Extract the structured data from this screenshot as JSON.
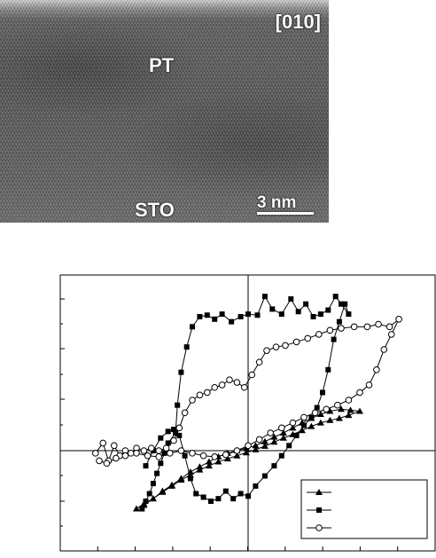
{
  "tem": {
    "zone_axis": "[010]",
    "film_label": "PT",
    "substrate_label": "STO",
    "scale_label": "3 nm"
  },
  "chart_data": {
    "type": "scatter",
    "grid": false,
    "legend_position": "bottom-right",
    "legend_marker_colors": [
      "#000000",
      "#000000",
      "#ffffff"
    ],
    "series": [
      {
        "marker": "triangle",
        "points": [
          [
            -3.0,
            -1.15
          ],
          [
            -2.8,
            -1.05
          ],
          [
            -2.55,
            -0.95
          ],
          [
            -2.3,
            -0.8
          ],
          [
            -2.05,
            -0.68
          ],
          [
            -1.8,
            -0.55
          ],
          [
            -1.55,
            -0.42
          ],
          [
            -1.3,
            -0.32
          ],
          [
            -1.05,
            -0.22
          ],
          [
            -0.8,
            -0.12
          ],
          [
            -0.55,
            -0.05
          ],
          [
            -0.3,
            0.0
          ],
          [
            -0.05,
            0.05
          ],
          [
            0.2,
            0.1
          ],
          [
            0.45,
            0.18
          ],
          [
            0.7,
            0.27
          ],
          [
            0.95,
            0.35
          ],
          [
            1.2,
            0.45
          ],
          [
            1.45,
            0.55
          ],
          [
            1.7,
            0.64
          ],
          [
            1.95,
            0.72
          ],
          [
            2.2,
            0.78
          ],
          [
            2.5,
            0.82
          ],
          [
            2.75,
            0.8
          ],
          [
            3.0,
            0.78
          ],
          [
            2.7,
            0.7
          ],
          [
            2.45,
            0.64
          ],
          [
            2.2,
            0.6
          ],
          [
            1.95,
            0.55
          ],
          [
            1.7,
            0.48
          ],
          [
            1.45,
            0.4
          ],
          [
            1.2,
            0.32
          ],
          [
            0.95,
            0.25
          ],
          [
            0.7,
            0.17
          ],
          [
            0.45,
            0.09
          ],
          [
            0.2,
            0.02
          ],
          [
            -0.05,
            -0.04
          ],
          [
            -0.3,
            -0.1
          ],
          [
            -0.55,
            -0.16
          ],
          [
            -0.8,
            -0.22
          ],
          [
            -1.05,
            -0.3
          ],
          [
            -1.3,
            -0.38
          ],
          [
            -1.55,
            -0.48
          ],
          [
            -1.8,
            -0.58
          ],
          [
            -2.05,
            -0.7
          ],
          [
            -2.3,
            -0.82
          ],
          [
            -2.55,
            -0.95
          ],
          [
            -2.8,
            -1.08
          ]
        ]
      },
      {
        "marker": "square",
        "points": [
          [
            -2.85,
            -1.15
          ],
          [
            -2.75,
            -1.0
          ],
          [
            -2.65,
            -0.85
          ],
          [
            -2.55,
            -0.65
          ],
          [
            -2.45,
            -0.45
          ],
          [
            -2.35,
            -0.25
          ],
          [
            -2.25,
            -0.05
          ],
          [
            -2.15,
            0.15
          ],
          [
            -1.95,
            0.35
          ],
          [
            -1.9,
            0.9
          ],
          [
            -1.8,
            1.55
          ],
          [
            -1.65,
            2.05
          ],
          [
            -1.5,
            2.45
          ],
          [
            -1.3,
            2.65
          ],
          [
            -1.1,
            2.68
          ],
          [
            -0.9,
            2.6
          ],
          [
            -0.7,
            2.7
          ],
          [
            -0.45,
            2.55
          ],
          [
            -0.2,
            2.65
          ],
          [
            0.0,
            2.7
          ],
          [
            0.25,
            2.68
          ],
          [
            0.45,
            3.05
          ],
          [
            0.65,
            2.8
          ],
          [
            0.9,
            2.7
          ],
          [
            1.15,
            3.0
          ],
          [
            1.35,
            2.75
          ],
          [
            1.55,
            2.9
          ],
          [
            1.75,
            2.65
          ],
          [
            1.95,
            2.7
          ],
          [
            2.15,
            2.78
          ],
          [
            2.35,
            3.05
          ],
          [
            2.5,
            2.9
          ],
          [
            2.7,
            2.7
          ],
          [
            2.6,
            2.9
          ],
          [
            2.45,
            2.55
          ],
          [
            2.3,
            2.2
          ],
          [
            2.15,
            1.6
          ],
          [
            2.0,
            1.15
          ],
          [
            1.85,
            0.85
          ],
          [
            1.7,
            0.65
          ],
          [
            1.5,
            0.5
          ],
          [
            1.3,
            0.3
          ],
          [
            1.1,
            0.1
          ],
          [
            0.9,
            -0.1
          ],
          [
            0.7,
            -0.3
          ],
          [
            0.45,
            -0.5
          ],
          [
            0.2,
            -0.7
          ],
          [
            0.0,
            -0.9
          ],
          [
            -0.2,
            -0.85
          ],
          [
            -0.4,
            -0.95
          ],
          [
            -0.6,
            -0.8
          ],
          [
            -0.8,
            -0.95
          ],
          [
            -1.0,
            -1.0
          ],
          [
            -1.2,
            -0.92
          ],
          [
            -1.4,
            -0.85
          ],
          [
            -1.55,
            -0.55
          ],
          [
            -1.7,
            -0.1
          ],
          [
            -1.85,
            0.3
          ],
          [
            -2.0,
            0.42
          ],
          [
            -2.15,
            0.38
          ],
          [
            -2.35,
            0.25
          ],
          [
            -2.55,
            0.0
          ],
          [
            -2.75,
            -0.3
          ]
        ]
      },
      {
        "marker": "circle",
        "points": [
          [
            -4.1,
            -0.05
          ],
          [
            -3.9,
            0.15
          ],
          [
            -3.75,
            -0.2
          ],
          [
            -3.6,
            0.1
          ],
          [
            -3.45,
            -0.1
          ],
          [
            -3.3,
            0.0
          ],
          [
            -3.15,
            -0.05
          ],
          [
            -3.0,
            0.05
          ],
          [
            -2.8,
            0.0
          ],
          [
            -2.6,
            0.05
          ],
          [
            -2.4,
            0.0
          ],
          [
            -2.2,
            0.05
          ],
          [
            -2.0,
            0.2
          ],
          [
            -1.85,
            0.45
          ],
          [
            -1.7,
            0.75
          ],
          [
            -1.5,
            1.0
          ],
          [
            -1.3,
            1.1
          ],
          [
            -1.1,
            1.15
          ],
          [
            -0.9,
            1.25
          ],
          [
            -0.7,
            1.3
          ],
          [
            -0.5,
            1.4
          ],
          [
            -0.3,
            1.35
          ],
          [
            -0.1,
            1.25
          ],
          [
            0.1,
            1.5
          ],
          [
            0.3,
            1.75
          ],
          [
            0.5,
            1.98
          ],
          [
            0.75,
            2.05
          ],
          [
            1.0,
            2.08
          ],
          [
            1.3,
            2.15
          ],
          [
            1.6,
            2.22
          ],
          [
            1.9,
            2.3
          ],
          [
            2.2,
            2.38
          ],
          [
            2.5,
            2.42
          ],
          [
            2.85,
            2.45
          ],
          [
            3.2,
            2.45
          ],
          [
            3.5,
            2.5
          ],
          [
            3.8,
            2.45
          ],
          [
            4.05,
            2.6
          ],
          [
            3.85,
            2.3
          ],
          [
            3.65,
            2.0
          ],
          [
            3.45,
            1.6
          ],
          [
            3.25,
            1.3
          ],
          [
            3.0,
            1.15
          ],
          [
            2.7,
            1.0
          ],
          [
            2.4,
            0.9
          ],
          [
            2.1,
            0.82
          ],
          [
            1.8,
            0.75
          ],
          [
            1.5,
            0.66
          ],
          [
            1.2,
            0.55
          ],
          [
            0.9,
            0.45
          ],
          [
            0.6,
            0.35
          ],
          [
            0.3,
            0.22
          ],
          [
            0.0,
            0.1
          ],
          [
            -0.3,
            0.0
          ],
          [
            -0.6,
            -0.08
          ],
          [
            -0.9,
            -0.12
          ],
          [
            -1.2,
            -0.1
          ],
          [
            -1.5,
            -0.05
          ],
          [
            -1.8,
            0.0
          ],
          [
            -2.1,
            -0.05
          ],
          [
            -2.4,
            -0.12
          ],
          [
            -2.7,
            -0.1
          ],
          [
            -3.0,
            -0.05
          ],
          [
            -3.3,
            -0.1
          ],
          [
            -3.55,
            -0.15
          ],
          [
            -3.8,
            -0.25
          ],
          [
            -4.0,
            -0.2
          ]
        ]
      }
    ]
  }
}
